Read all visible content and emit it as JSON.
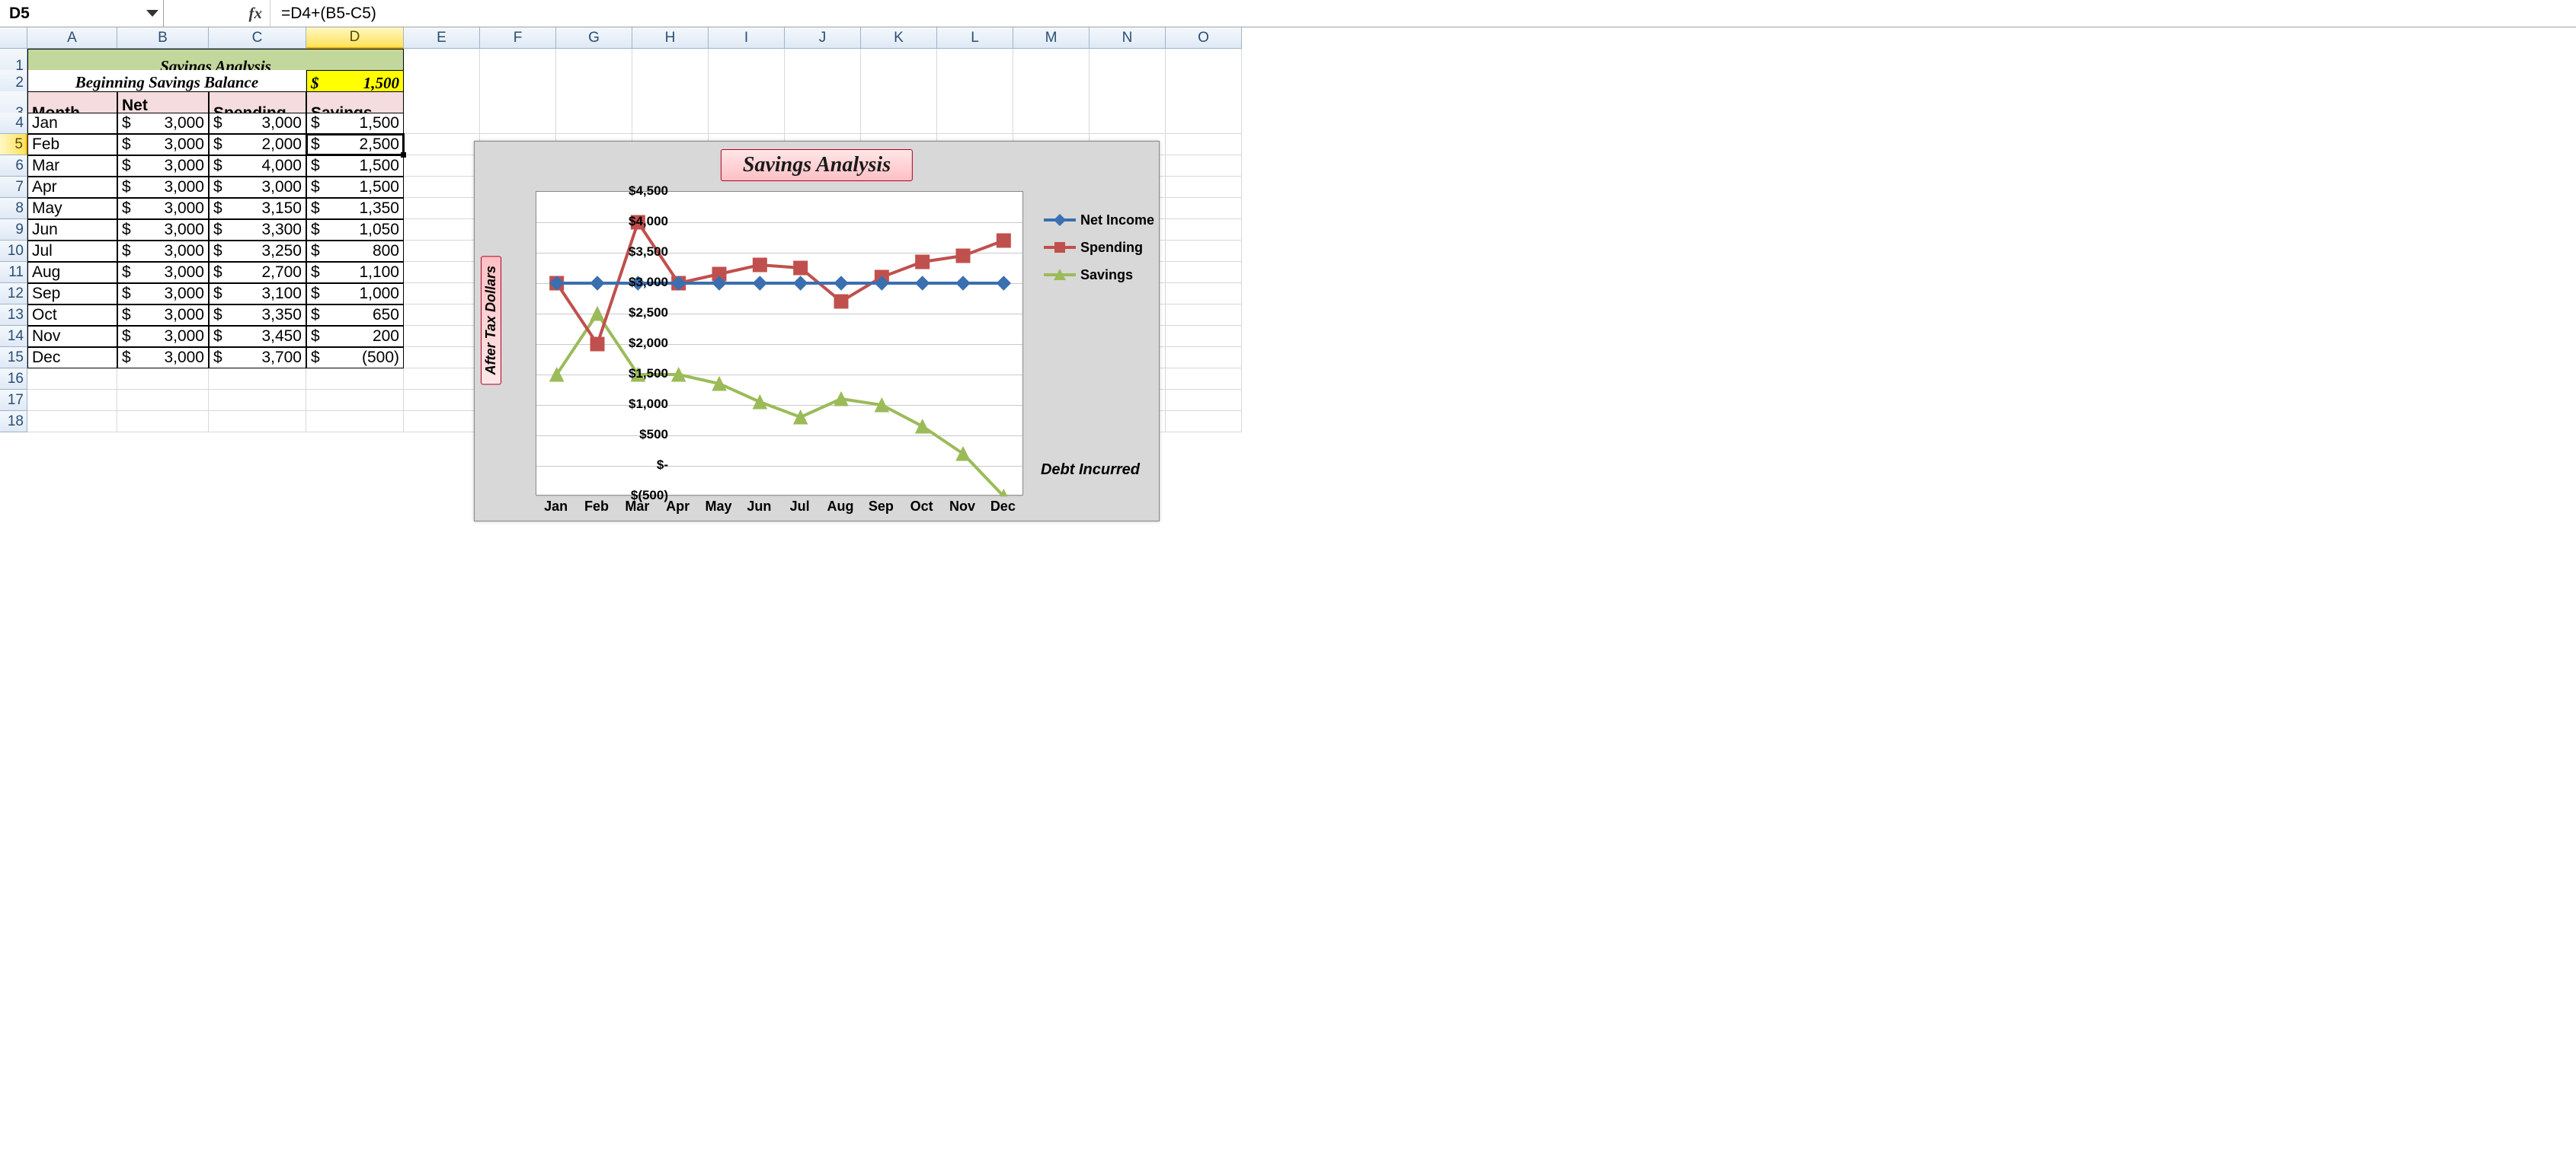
{
  "formula_bar": {
    "cell_ref": "D5",
    "fx_label": "fx",
    "formula": "=D4+(B5-C5)"
  },
  "columns": [
    "A",
    "B",
    "C",
    "D",
    "E",
    "F",
    "G",
    "H",
    "I",
    "J",
    "K",
    "L",
    "M",
    "N",
    "O"
  ],
  "selected_col": "D",
  "selected_row": 5,
  "rows_visible": 18,
  "row_heights": {
    "1": 46,
    "2": 34,
    "3": 58
  },
  "col_widths": {
    "A": 118,
    "B": 120,
    "C": 128,
    "D": 128
  },
  "title": "Savings Analysis",
  "beginning_balance_label": "Beginning Savings Balance",
  "beginning_balance_value": "1,500",
  "currency_symbol": "$",
  "headers": {
    "month": "Month",
    "income": "Net Income",
    "spending": "Spending",
    "savings": "Savings"
  },
  "table": [
    {
      "month": "Jan",
      "income": "3,000",
      "spending": "3,000",
      "savings": "1,500"
    },
    {
      "month": "Feb",
      "income": "3,000",
      "spending": "2,000",
      "savings": "2,500"
    },
    {
      "month": "Mar",
      "income": "3,000",
      "spending": "4,000",
      "savings": "1,500"
    },
    {
      "month": "Apr",
      "income": "3,000",
      "spending": "3,000",
      "savings": "1,500"
    },
    {
      "month": "May",
      "income": "3,000",
      "spending": "3,150",
      "savings": "1,350"
    },
    {
      "month": "Jun",
      "income": "3,000",
      "spending": "3,300",
      "savings": "1,050"
    },
    {
      "month": "Jul",
      "income": "3,000",
      "spending": "3,250",
      "savings": "800"
    },
    {
      "month": "Aug",
      "income": "3,000",
      "spending": "2,700",
      "savings": "1,100"
    },
    {
      "month": "Sep",
      "income": "3,000",
      "spending": "3,100",
      "savings": "1,000"
    },
    {
      "month": "Oct",
      "income": "3,000",
      "spending": "3,350",
      "savings": "650"
    },
    {
      "month": "Nov",
      "income": "3,000",
      "spending": "3,450",
      "savings": "200"
    },
    {
      "month": "Dec",
      "income": "3,000",
      "spending": "3,700",
      "savings": "(500)"
    }
  ],
  "chart": {
    "title": "Savings Analysis",
    "y_axis_title": "After Tax Dollars",
    "annotation": "Debt Incurred",
    "ylim": [
      -500,
      4500
    ],
    "ytick_step": 500,
    "y_labels": [
      "$4,500",
      "$4,000",
      "$3,500",
      "$3,000",
      "$2,500",
      "$2,000",
      "$1,500",
      "$1,000",
      "$500",
      "$-",
      "$(500)"
    ],
    "categories": [
      "Jan",
      "Feb",
      "Mar",
      "Apr",
      "May",
      "Jun",
      "Jul",
      "Aug",
      "Sep",
      "Oct",
      "Nov",
      "Dec"
    ],
    "series": {
      "net_income": {
        "label": "Net Income",
        "color": "#3a6fb0",
        "marker": "diamond",
        "values": [
          3000,
          3000,
          3000,
          3000,
          3000,
          3000,
          3000,
          3000,
          3000,
          3000,
          3000,
          3000
        ]
      },
      "spending": {
        "label": "Spending",
        "color": "#c0504d",
        "marker": "square",
        "values": [
          3000,
          2000,
          4000,
          3000,
          3150,
          3300,
          3250,
          2700,
          3100,
          3350,
          3450,
          3700
        ]
      },
      "savings": {
        "label": "Savings",
        "color": "#9bbb59",
        "marker": "triangle",
        "values": [
          1500,
          2500,
          1500,
          1500,
          1350,
          1050,
          800,
          1100,
          1000,
          650,
          200,
          -500
        ]
      }
    },
    "background_color": "#d8d8d8",
    "plot_bg": "#ffffff",
    "grid_color": "#c9c9c9",
    "line_width": 4,
    "marker_size": 9
  }
}
